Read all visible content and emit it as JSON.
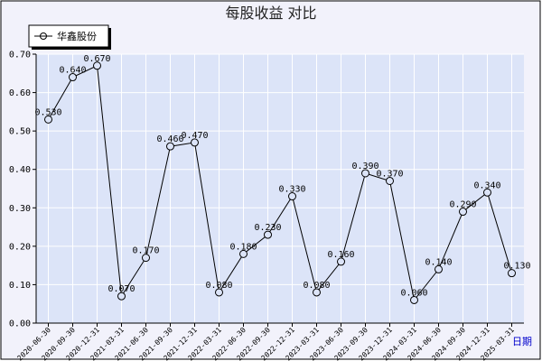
{
  "chart_data": {
    "type": "line",
    "title": "每股收益  对比",
    "xlabel": "日期",
    "ylabel": "",
    "ylim": [
      0,
      0.7
    ],
    "yticks": [
      "0.00",
      "0.10",
      "0.20",
      "0.30",
      "0.40",
      "0.50",
      "0.60",
      "0.70"
    ],
    "grid": true,
    "legend_position": "top-left",
    "categories": [
      "2020-06-30",
      "2020-09-30",
      "2020-12-31",
      "2021-03-31",
      "2021-06-30",
      "2021-09-30",
      "2021-12-31",
      "2022-03-31",
      "2022-06-30",
      "2022-09-30",
      "2022-12-31",
      "2023-03-31",
      "2023-06-30",
      "2023-09-30",
      "2023-12-31",
      "2024-03-31",
      "2024-06-30",
      "2024-09-30",
      "2024-12-31",
      "2025-03-31"
    ],
    "series": [
      {
        "name": "华鑫股份",
        "values": [
          0.53,
          0.64,
          0.67,
          0.07,
          0.17,
          0.46,
          0.47,
          0.08,
          0.18,
          0.23,
          0.33,
          0.08,
          0.16,
          0.39,
          0.37,
          0.06,
          0.14,
          0.29,
          0.34,
          0.13
        ],
        "labels": [
          "0.530",
          "0.640",
          "0.670",
          "0.070",
          "0.170",
          "0.460",
          "0.470",
          "0.080",
          "0.180",
          "0.230",
          "0.330",
          "0.080",
          "0.160",
          "0.390",
          "0.370",
          "0.060",
          "0.140",
          "0.290",
          "0.340",
          "0.130"
        ]
      }
    ],
    "colors": {
      "page_bg": "#ffffff",
      "frame_bg": "#f2f2fb",
      "plot_bg": "#dce4f8",
      "grid": "#ffffff",
      "line": "#000000",
      "axis_title": "#0000cc"
    }
  }
}
